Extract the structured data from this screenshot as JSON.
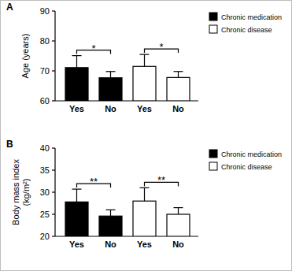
{
  "chart_data": [
    {
      "type": "bar",
      "title": "A",
      "y_label": "Age (years)",
      "categories": [
        "Yes",
        "No",
        "Yes",
        "No"
      ],
      "series": [
        {
          "name": "Chronic medication",
          "color": "#000000",
          "values": [
            71.1,
            67.7,
            null,
            null
          ],
          "errors": [
            4.0,
            2.1,
            null,
            null
          ]
        },
        {
          "name": "Chronic disease",
          "color": "#ffffff",
          "values": [
            null,
            null,
            71.5,
            67.8
          ],
          "errors": [
            null,
            null,
            4.0,
            2.0
          ]
        }
      ],
      "ylim": [
        60,
        90
      ],
      "yticks": [
        60,
        70,
        80,
        90
      ],
      "annotations": [
        "*",
        "*"
      ],
      "legend": "right"
    },
    {
      "type": "bar",
      "title": "B",
      "y_label": "Body mass index\n(kg/m²)",
      "categories": [
        "Yes",
        "No",
        "Yes",
        "No"
      ],
      "series": [
        {
          "name": "Chronic medication",
          "color": "#000000",
          "values": [
            27.8,
            24.6,
            null,
            null
          ],
          "errors": [
            2.9,
            1.4,
            null,
            null
          ]
        },
        {
          "name": "Chronic disease",
          "color": "#ffffff",
          "values": [
            null,
            null,
            28.0,
            25.0
          ],
          "errors": [
            null,
            null,
            3.0,
            1.5
          ]
        }
      ],
      "ylim": [
        20,
        40
      ],
      "yticks": [
        20,
        25,
        30,
        35,
        40
      ],
      "annotations": [
        "**",
        "**"
      ],
      "legend": "right"
    }
  ]
}
